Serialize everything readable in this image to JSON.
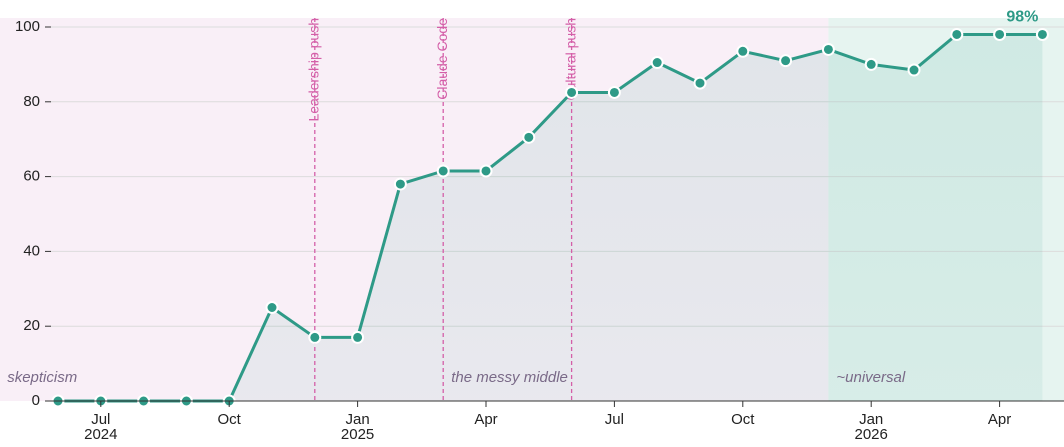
{
  "chart_data": {
    "type": "line",
    "x": [
      "2024-06",
      "2024-07",
      "2024-08",
      "2024-09",
      "2024-10",
      "2024-11",
      "2024-12",
      "2025-01",
      "2025-02",
      "2025-03",
      "2025-04",
      "2025-05",
      "2025-06",
      "2025-07",
      "2025-08",
      "2025-09",
      "2025-10",
      "2025-11",
      "2025-12",
      "2026-01",
      "2026-02",
      "2026-03",
      "2026-04",
      "2026-05"
    ],
    "series": [
      {
        "color": "#2e9a87",
        "values": [
          0,
          0,
          0,
          0,
          0,
          25,
          17,
          17,
          58,
          61.5,
          61.5,
          70.5,
          82.5,
          82.5,
          90.5,
          85,
          93.5,
          91,
          94,
          90,
          88.5,
          98,
          98,
          98
        ],
        "value_labels": [
          null,
          null,
          null,
          null,
          null,
          null,
          null,
          null,
          null,
          null,
          null,
          null,
          null,
          null,
          null,
          null,
          null,
          null,
          null,
          null,
          null,
          null,
          null,
          "98%"
        ]
      }
    ],
    "ylim": [
      0,
      103
    ],
    "yticks": [
      0,
      20,
      40,
      60,
      80,
      100
    ],
    "xticks": [
      {
        "value": "2024-07",
        "label": "Jul\n2024"
      },
      {
        "value": "2024-10",
        "label": "Oct"
      },
      {
        "value": "2025-01",
        "label": "Jan\n2025"
      },
      {
        "value": "2025-04",
        "label": "Apr"
      },
      {
        "value": "2025-07",
        "label": "Jul"
      },
      {
        "value": "2025-10",
        "label": "Oct"
      },
      {
        "value": "2026-01",
        "label": "Jan\n2026"
      },
      {
        "value": "2026-04",
        "label": "Apr"
      }
    ],
    "grid": true,
    "events": [
      {
        "label": "Leadership push",
        "x": "2024-12"
      },
      {
        "label": "Claude Code",
        "x": "2025-03"
      },
      {
        "label": "Cultural push",
        "x": "2025-06"
      }
    ],
    "event_color": "#d45fa8",
    "regions": [
      {
        "label": "skepticism",
        "start": "2024-05",
        "color": "#f9eff7"
      },
      {
        "label": "the messy middle",
        "start": "2025-03",
        "color": "#f9eff7"
      },
      {
        "label": "~universal",
        "start": "2025-12",
        "color": "#e6f4f0"
      }
    ]
  }
}
